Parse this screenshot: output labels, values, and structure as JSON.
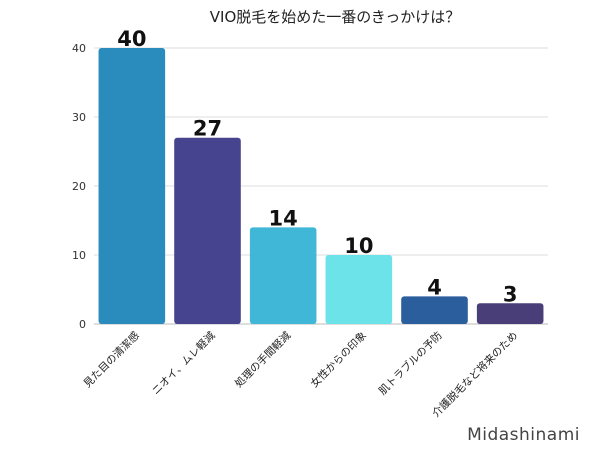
{
  "chart_data": {
    "type": "bar",
    "title": "VIO脱毛を始めた一番のきっかけは？",
    "categories": [
      "見た目の清潔感",
      "ニオイ、ムレ軽減",
      "処理の手間軽減",
      "女性からの印象",
      "肌トラブルの予防",
      "介護脱毛など将来のため"
    ],
    "values": [
      40,
      27,
      14,
      10,
      4,
      3
    ],
    "colors": [
      "#2a8cbc",
      "#46448e",
      "#41b7d8",
      "#6be3e8",
      "#2a5e9c",
      "#4a3e78"
    ],
    "yticks": [
      0,
      10,
      20,
      30,
      40
    ],
    "ylim": [
      0,
      40
    ],
    "grid": true,
    "data_labels": true
  },
  "watermark": "Midashinami"
}
